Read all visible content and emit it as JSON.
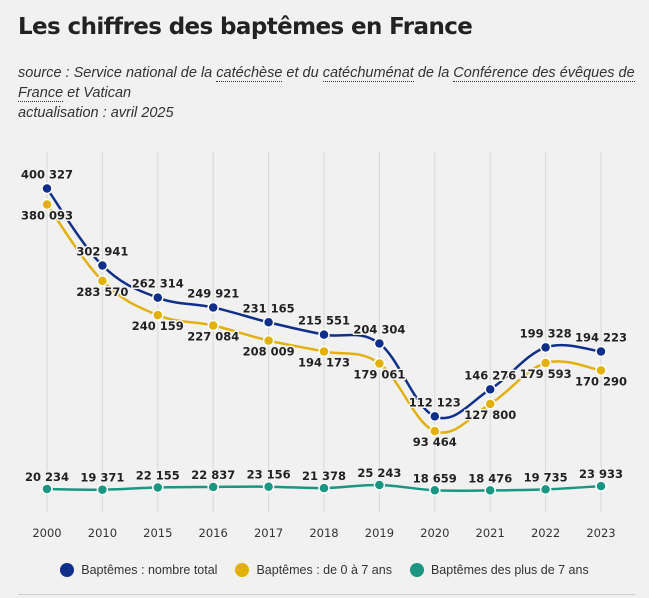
{
  "title": "Les chiffres des baptêmes en France",
  "source": {
    "prefix": "source : Service national de la ",
    "link1": "catéchèse",
    "mid1": " et du ",
    "link2": "catéchuménat",
    "mid2": " de la ",
    "link3": "Conférence des évêques de France",
    "suffix": " et Vatican",
    "update": "actualisation : avril 2025"
  },
  "chart_data": {
    "type": "line",
    "x": [
      "2000",
      "2010",
      "2015",
      "2016",
      "2017",
      "2018",
      "2019",
      "2020",
      "2021",
      "2022",
      "2023"
    ],
    "ylim": [
      0,
      420000
    ],
    "grid": "vertical",
    "legend_position": "bottom",
    "series": [
      {
        "name": "Baptêmes : nombre total",
        "color": "#0f2f8a",
        "values": [
          400327,
          302941,
          262314,
          249921,
          231165,
          215551,
          204304,
          112123,
          146276,
          199328,
          194223
        ],
        "labels": [
          "400 327",
          "302 941",
          "262 314",
          "249 921",
          "231 165",
          "215 551",
          "204 304",
          "112 123",
          "146 276",
          "199 328",
          "194 223"
        ]
      },
      {
        "name": "Baptêmes : de 0 à 7 ans",
        "color": "#e2b007",
        "values": [
          380093,
          283570,
          240159,
          227084,
          208009,
          194173,
          179061,
          93464,
          127800,
          179593,
          170290
        ],
        "labels": [
          "380 093",
          "283 570",
          "240 159",
          "227 084",
          "208 009",
          "194 173",
          "179 061",
          "93 464",
          "127 800",
          "179 593",
          "170 290"
        ]
      },
      {
        "name": "Baptêmes des plus de 7 ans",
        "color": "#1a9683",
        "values": [
          20234,
          19371,
          22155,
          22837,
          23156,
          21378,
          25243,
          18659,
          18476,
          19735,
          23933
        ],
        "labels": [
          "20 234",
          "19 371",
          "22 155",
          "22 837",
          "23 156",
          "21 378",
          "25 243",
          "18 659",
          "18 476",
          "19 735",
          "23 933"
        ]
      }
    ]
  }
}
